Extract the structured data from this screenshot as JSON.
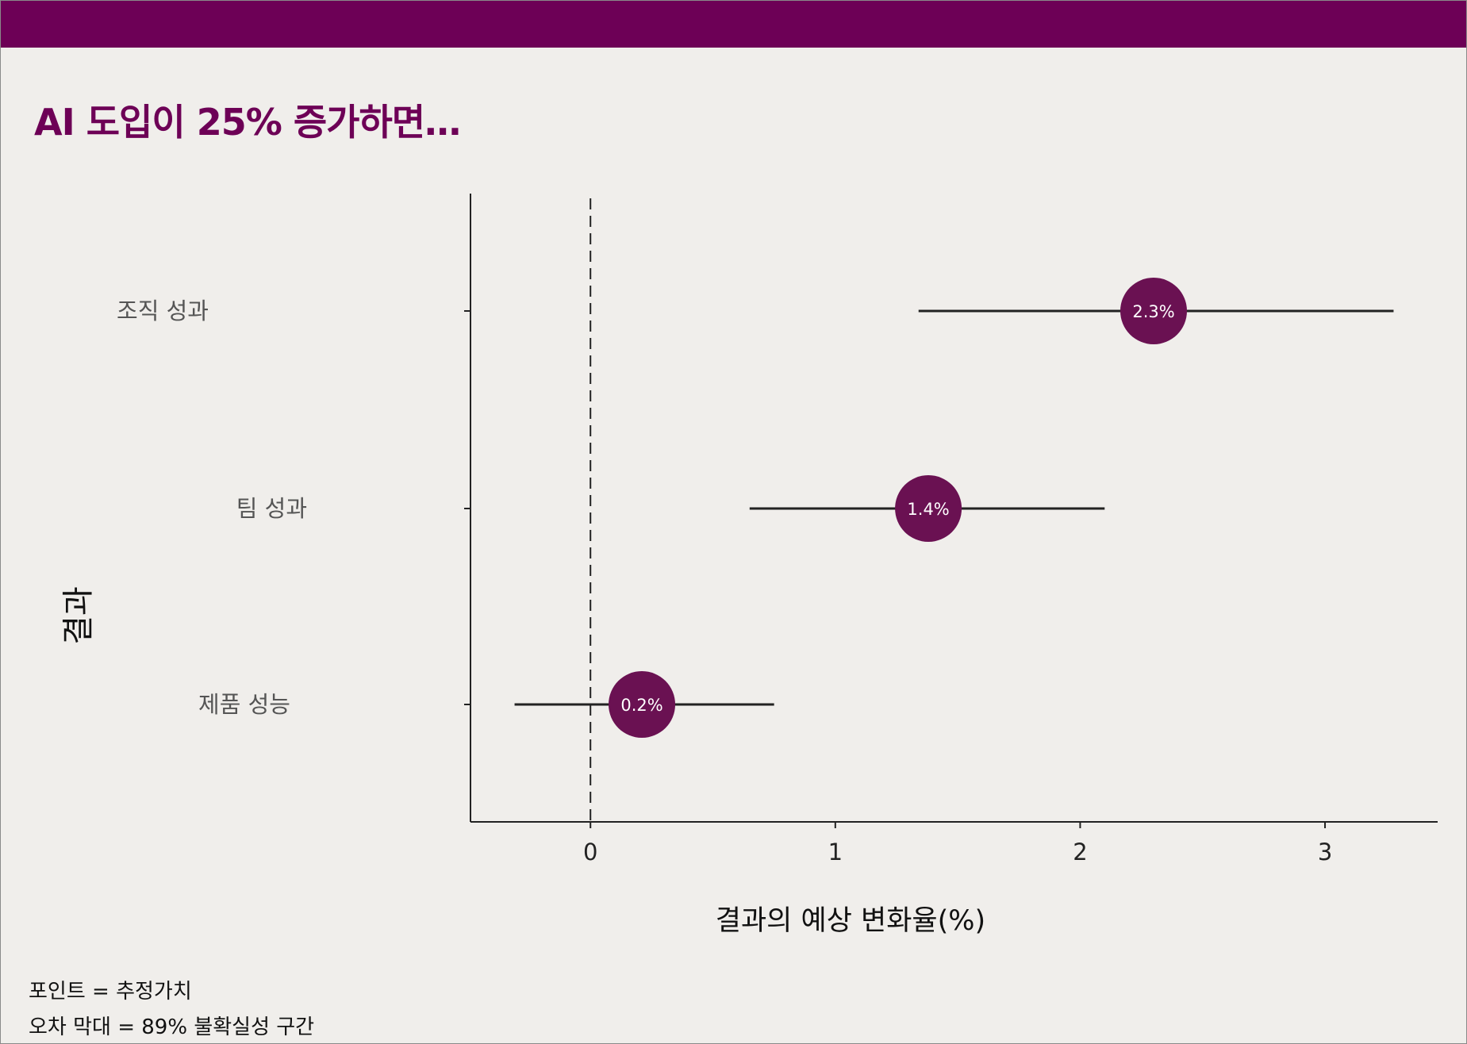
{
  "title": "AI 도입이 25% 증가하면…",
  "footnotes": [
    "포인트 = 추정가치",
    "오차 막대 = 89% 불확실성 구간"
  ],
  "colors": {
    "accent": "#6d0056",
    "point": "#6a1152",
    "background": "#f0eeeb"
  },
  "chart_data": {
    "type": "scatter",
    "subtype": "point-range",
    "title": "AI 도입이 25% 증가하면…",
    "xlabel": "결과의 예상 변화율(%)",
    "ylabel": "결과",
    "xlim": [
      -0.49,
      3.46
    ],
    "x_ticks": [
      "0",
      "1",
      "2",
      "3"
    ],
    "reference_line_x": 0,
    "grid": false,
    "categories": [
      "조직 성과",
      "팀 성과",
      "제품 성능"
    ],
    "estimates": [
      2.3,
      1.38,
      0.21
    ],
    "lower": [
      1.34,
      0.65,
      -0.31
    ],
    "upper": [
      3.28,
      2.1,
      0.75
    ],
    "point_labels": [
      "2.3%",
      "1.4%",
      "0.2%"
    ]
  }
}
